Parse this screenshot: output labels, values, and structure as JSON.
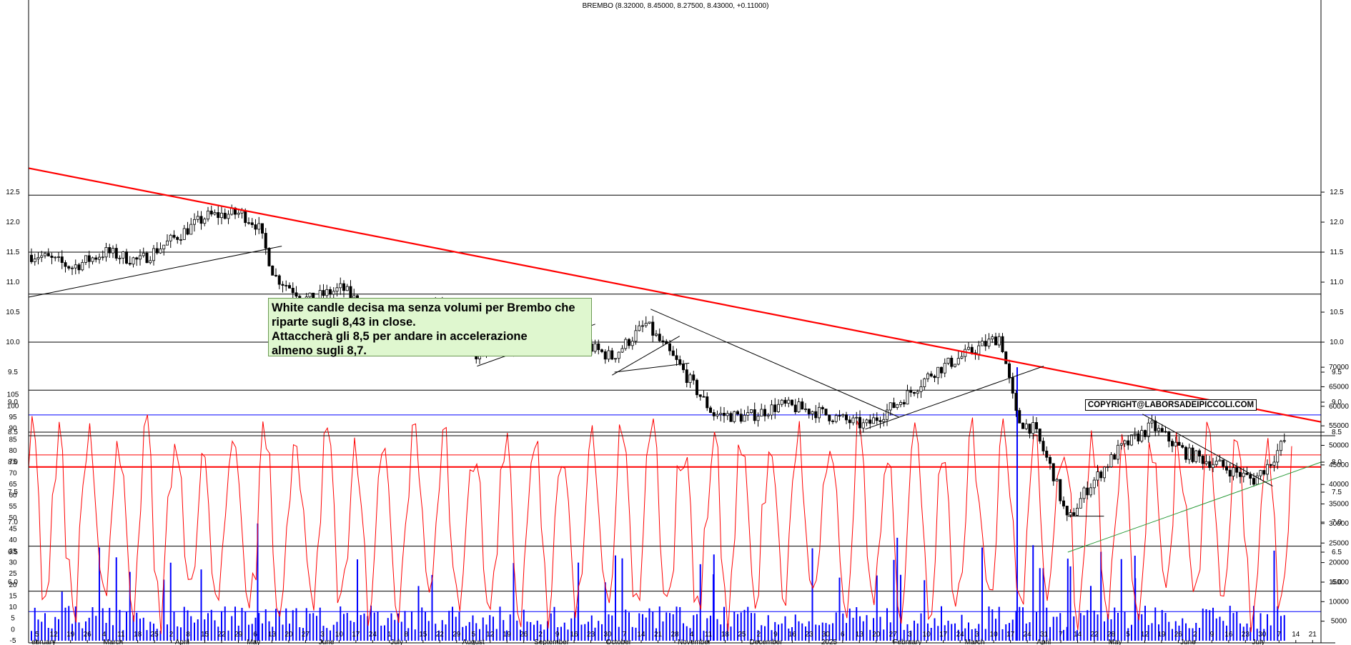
{
  "header": {
    "title": "BREMBO (8.32000, 8.45000, 8.27500, 8.43000, +0.11000)"
  },
  "annotation": {
    "lines": [
      "White candle decisa ma senza volumi per Brembo che",
      "riparte sugli 8,43 in close.",
      "Attaccherà gli 8,5 per andare in accelerazione",
      "almeno sugli 8,7."
    ]
  },
  "copyright": "COPYRIGHT@LABORSADEIPICCOLI.COM",
  "colors": {
    "trend_main": "#ff0000",
    "trend_minor": "#000000",
    "support_green": "#2e9c3c",
    "oscillator": "#ff0000",
    "volume": "#0000ff",
    "candle": "#000000"
  },
  "chart_data": [
    {
      "type": "candlestick",
      "title": "BREMBO (8.32000, 8.45000, 8.27500, 8.43000, +0.11000)",
      "last_bar": {
        "open": 8.32,
        "high": 8.45,
        "low": 8.275,
        "close": 8.43,
        "change": 0.11
      },
      "y_ticks": [
        "6.0",
        "6.5",
        "7.0",
        "7.5",
        "8.0",
        "8.5",
        "9.0",
        "9.5",
        "10.0",
        "10.5",
        "11.0",
        "11.5",
        "12.0",
        "12.5"
      ],
      "ylim": [
        6.0,
        12.75
      ],
      "x_day_labels": [
        "5",
        "12",
        "19",
        "26",
        "4",
        "11",
        "18",
        "25",
        "2",
        "8",
        "15",
        "22",
        "29",
        "6",
        "13",
        "20",
        "27",
        "3",
        "10",
        "17",
        "24",
        "1",
        "8",
        "15",
        "22",
        "29",
        "5",
        "12",
        "19",
        "26",
        "2",
        "9",
        "16",
        "23",
        "30",
        "7",
        "14",
        "21",
        "28",
        "4",
        "11",
        "18",
        "25",
        "2",
        "9",
        "16",
        "23",
        "30",
        "6",
        "13",
        "20",
        "27",
        "3",
        "10",
        "17",
        "24",
        "3",
        "10",
        "17",
        "24",
        "31",
        "7",
        "14",
        "22",
        "28",
        "5",
        "12",
        "19",
        "26",
        "2",
        "9",
        "16",
        "23",
        "30",
        "7",
        "14",
        "21"
      ],
      "x_month_labels": [
        "ebruary",
        "March",
        "April",
        "May",
        "June",
        "July",
        "August",
        "September",
        "October",
        "November",
        "December",
        "2025",
        "February",
        "March",
        "April",
        "May",
        "June",
        "July"
      ],
      "horizontal_levels": [
        12.45,
        11.5,
        10.8,
        10.0,
        9.2,
        8.5,
        8.12,
        7.92,
        6.6,
        5.85
      ],
      "trendlines": [
        {
          "name": "main-descending",
          "from": [
            "2024-02-01",
            12.9
          ],
          "to": [
            "2025-07-21",
            8.67
          ]
        },
        {
          "name": "rising-support",
          "from": [
            "2025-04-07",
            6.5
          ],
          "to": [
            "2025-07-21",
            8.0
          ]
        }
      ],
      "close_path": [
        [
          "2024-02-05",
          11.45
        ],
        [
          "2024-02-19",
          11.25
        ],
        [
          "2024-03-04",
          11.5
        ],
        [
          "2024-03-18",
          11.35
        ],
        [
          "2024-04-02",
          11.75
        ],
        [
          "2024-04-15",
          12.1
        ],
        [
          "2024-04-29",
          12.15
        ],
        [
          "2024-05-06",
          11.95
        ],
        [
          "2024-05-13",
          11.1
        ],
        [
          "2024-05-27",
          10.7
        ],
        [
          "2024-06-10",
          10.9
        ],
        [
          "2024-06-24",
          10.4
        ],
        [
          "2024-07-08",
          10.5
        ],
        [
          "2024-07-22",
          10.6
        ],
        [
          "2024-08-05",
          9.8
        ],
        [
          "2024-08-19",
          9.95
        ],
        [
          "2024-09-02",
          10.25
        ],
        [
          "2024-09-16",
          10.0
        ],
        [
          "2024-09-30",
          9.75
        ],
        [
          "2024-10-14",
          10.3
        ],
        [
          "2024-10-28",
          9.6
        ],
        [
          "2024-11-11",
          8.8
        ],
        [
          "2024-11-25",
          8.75
        ],
        [
          "2024-12-09",
          8.95
        ],
        [
          "2024-12-23",
          8.85
        ],
        [
          "2025-01-13",
          8.6
        ],
        [
          "2025-01-27",
          9.0
        ],
        [
          "2025-02-10",
          9.5
        ],
        [
          "2025-02-24",
          9.8
        ],
        [
          "2025-03-10",
          10.1
        ],
        [
          "2025-03-17",
          8.7
        ],
        [
          "2025-03-24",
          8.55
        ],
        [
          "2025-04-01",
          7.8
        ],
        [
          "2025-04-07",
          7.0
        ],
        [
          "2025-04-14",
          7.5
        ],
        [
          "2025-04-28",
          8.2
        ],
        [
          "2025-05-12",
          8.6
        ],
        [
          "2025-05-26",
          8.15
        ],
        [
          "2025-06-09",
          7.95
        ],
        [
          "2025-06-23",
          7.7
        ],
        [
          "2025-06-30",
          8.0
        ],
        [
          "2025-07-07",
          8.43
        ]
      ]
    },
    {
      "type": "line",
      "name": "oscillator",
      "y_ticks": [
        "-5",
        "0",
        "5",
        "10",
        "15",
        "20",
        "25",
        "30",
        "35",
        "40",
        "45",
        "50",
        "55",
        "60",
        "65",
        "70",
        "75",
        "80",
        "85",
        "90",
        "95",
        "100",
        "105"
      ],
      "ylim": [
        -5,
        105
      ],
      "reference_levels": [
        96,
        8
      ]
    },
    {
      "type": "bar",
      "name": "volume",
      "y_ticks": [
        "5000",
        "10000",
        "15000",
        "20000",
        "25000",
        "30000",
        "35000",
        "40000",
        "45000",
        "50000",
        "55000",
        "60000",
        "65000",
        "70000"
      ],
      "ylim": [
        0,
        72000
      ]
    }
  ]
}
